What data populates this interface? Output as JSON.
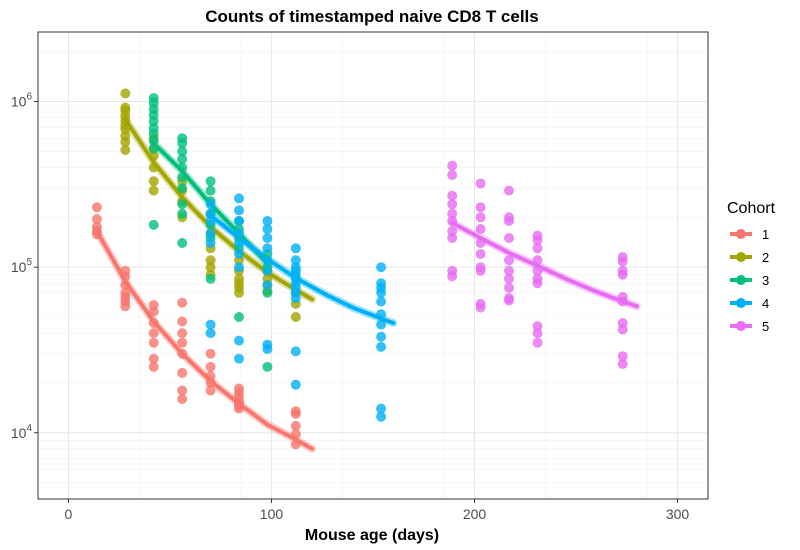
{
  "chart_data": {
    "type": "scatter",
    "title": "Counts of timestamped naive CD8 T cells",
    "xlabel": "Mouse age (days)",
    "ylabel": "",
    "xlim": [
      -15,
      315
    ],
    "ylim": [
      3.6,
      6.42
    ],
    "y_scale": "log10",
    "x_ticks": [
      0,
      100,
      200,
      300
    ],
    "y_ticks": [
      {
        "value": 10000,
        "base": "10",
        "exp": "4"
      },
      {
        "value": 100000,
        "base": "10",
        "exp": "5"
      },
      {
        "value": 1000000,
        "base": "10",
        "exp": "6"
      }
    ],
    "grid": true,
    "legend": {
      "title": "Cohort",
      "position": "right"
    },
    "series": [
      {
        "name": "1",
        "color": "#F8766D",
        "points": [
          [
            14,
            230000
          ],
          [
            14,
            195000
          ],
          [
            14,
            175000
          ],
          [
            14,
            165000
          ],
          [
            14,
            158000
          ],
          [
            28,
            95000
          ],
          [
            28,
            88000
          ],
          [
            28,
            78000
          ],
          [
            28,
            70000
          ],
          [
            28,
            66000
          ],
          [
            28,
            62000
          ],
          [
            28,
            58000
          ],
          [
            42,
            59000
          ],
          [
            42,
            54000
          ],
          [
            42,
            46000
          ],
          [
            42,
            40000
          ],
          [
            42,
            35000
          ],
          [
            42,
            28000
          ],
          [
            42,
            25000
          ],
          [
            56,
            61000
          ],
          [
            56,
            47000
          ],
          [
            56,
            40000
          ],
          [
            56,
            35000
          ],
          [
            56,
            30000
          ],
          [
            56,
            23000
          ],
          [
            56,
            18000
          ],
          [
            56,
            16000
          ],
          [
            70,
            30000
          ],
          [
            70,
            25000
          ],
          [
            70,
            22000
          ],
          [
            70,
            20000
          ],
          [
            70,
            18000
          ],
          [
            84,
            18500
          ],
          [
            84,
            17500
          ],
          [
            84,
            16500
          ],
          [
            84,
            15500
          ],
          [
            84,
            15000
          ],
          [
            84,
            14500
          ],
          [
            84,
            14000
          ],
          [
            112,
            13500
          ],
          [
            112,
            13000
          ],
          [
            112,
            11000
          ],
          [
            112,
            9800
          ],
          [
            112,
            8500
          ]
        ],
        "fit": [
          [
            14,
            165000
          ],
          [
            28,
            82000
          ],
          [
            42,
            47000
          ],
          [
            56,
            30000
          ],
          [
            70,
            20500
          ],
          [
            84,
            15000
          ],
          [
            98,
            11200
          ],
          [
            112,
            9100
          ],
          [
            120,
            8000
          ]
        ]
      },
      {
        "name": "2",
        "color": "#A3A500",
        "points": [
          [
            28,
            1120000
          ],
          [
            28,
            920000
          ],
          [
            28,
            880000
          ],
          [
            28,
            820000
          ],
          [
            28,
            770000
          ],
          [
            28,
            720000
          ],
          [
            28,
            680000
          ],
          [
            28,
            620000
          ],
          [
            28,
            570000
          ],
          [
            28,
            510000
          ],
          [
            42,
            600000
          ],
          [
            42,
            520000
          ],
          [
            42,
            470000
          ],
          [
            42,
            400000
          ],
          [
            42,
            330000
          ],
          [
            42,
            290000
          ],
          [
            56,
            330000
          ],
          [
            56,
            290000
          ],
          [
            56,
            250000
          ],
          [
            56,
            200000
          ],
          [
            70,
            160000
          ],
          [
            70,
            130000
          ],
          [
            70,
            110000
          ],
          [
            70,
            100000
          ],
          [
            70,
            90000
          ],
          [
            84,
            110000
          ],
          [
            84,
            95000
          ],
          [
            84,
            85000
          ],
          [
            84,
            80000
          ],
          [
            84,
            75000
          ],
          [
            84,
            70000
          ],
          [
            98,
            95000
          ],
          [
            98,
            85000
          ],
          [
            98,
            78000
          ],
          [
            98,
            72000
          ],
          [
            112,
            70000
          ],
          [
            112,
            60000
          ],
          [
            112,
            50000
          ]
        ],
        "fit": [
          [
            28,
            780000
          ],
          [
            42,
            430000
          ],
          [
            56,
            265000
          ],
          [
            70,
            175000
          ],
          [
            84,
            125000
          ],
          [
            98,
            93000
          ],
          [
            112,
            73000
          ],
          [
            120,
            64000
          ]
        ]
      },
      {
        "name": "3",
        "color": "#00BF7D",
        "points": [
          [
            42,
            1050000
          ],
          [
            42,
            980000
          ],
          [
            42,
            900000
          ],
          [
            42,
            830000
          ],
          [
            42,
            760000
          ],
          [
            42,
            690000
          ],
          [
            42,
            640000
          ],
          [
            42,
            580000
          ],
          [
            42,
            520000
          ],
          [
            42,
            180000
          ],
          [
            56,
            600000
          ],
          [
            56,
            560000
          ],
          [
            56,
            500000
          ],
          [
            56,
            450000
          ],
          [
            56,
            400000
          ],
          [
            56,
            350000
          ],
          [
            56,
            300000
          ],
          [
            56,
            240000
          ],
          [
            56,
            210000
          ],
          [
            56,
            140000
          ],
          [
            70,
            330000
          ],
          [
            70,
            290000
          ],
          [
            70,
            250000
          ],
          [
            70,
            210000
          ],
          [
            70,
            180000
          ],
          [
            70,
            150000
          ],
          [
            70,
            85000
          ],
          [
            84,
            190000
          ],
          [
            84,
            170000
          ],
          [
            84,
            150000
          ],
          [
            84,
            130000
          ],
          [
            84,
            50000
          ],
          [
            98,
            120000
          ],
          [
            98,
            100000
          ],
          [
            98,
            70000
          ],
          [
            98,
            25000
          ]
        ],
        "fit": [
          [
            42,
            560000
          ],
          [
            56,
            380000
          ],
          [
            70,
            240000
          ],
          [
            84,
            160000
          ],
          [
            98,
            105000
          ]
        ]
      },
      {
        "name": "4",
        "color": "#00B0F6",
        "points": [
          [
            70,
            240000
          ],
          [
            70,
            210000
          ],
          [
            70,
            190000
          ],
          [
            70,
            160000
          ],
          [
            70,
            140000
          ],
          [
            70,
            45000
          ],
          [
            70,
            40000
          ],
          [
            84,
            260000
          ],
          [
            84,
            220000
          ],
          [
            84,
            190000
          ],
          [
            84,
            160000
          ],
          [
            84,
            140000
          ],
          [
            84,
            120000
          ],
          [
            84,
            100000
          ],
          [
            84,
            36000
          ],
          [
            84,
            28000
          ],
          [
            98,
            190000
          ],
          [
            98,
            170000
          ],
          [
            98,
            150000
          ],
          [
            98,
            130000
          ],
          [
            98,
            110000
          ],
          [
            98,
            95000
          ],
          [
            98,
            78000
          ],
          [
            98,
            34000
          ],
          [
            98,
            32000
          ],
          [
            112,
            130000
          ],
          [
            112,
            110000
          ],
          [
            112,
            100000
          ],
          [
            112,
            95000
          ],
          [
            112,
            90000
          ],
          [
            112,
            85000
          ],
          [
            112,
            80000
          ],
          [
            112,
            75000
          ],
          [
            112,
            70000
          ],
          [
            112,
            65000
          ],
          [
            112,
            31000
          ],
          [
            112,
            19500
          ],
          [
            154,
            100000
          ],
          [
            154,
            80000
          ],
          [
            154,
            75000
          ],
          [
            154,
            70000
          ],
          [
            154,
            62000
          ],
          [
            154,
            52000
          ],
          [
            154,
            45000
          ],
          [
            154,
            38000
          ],
          [
            154,
            33000
          ],
          [
            154,
            14000
          ],
          [
            154,
            12500
          ]
        ],
        "fit": [
          [
            70,
            205000
          ],
          [
            84,
            150000
          ],
          [
            98,
            112000
          ],
          [
            112,
            86000
          ],
          [
            126,
            69000
          ],
          [
            140,
            57000
          ],
          [
            154,
            49000
          ],
          [
            160,
            46000
          ]
        ]
      },
      {
        "name": "5",
        "color": "#E76BF3",
        "points": [
          [
            189,
            410000
          ],
          [
            189,
            360000
          ],
          [
            189,
            270000
          ],
          [
            189,
            240000
          ],
          [
            189,
            210000
          ],
          [
            189,
            190000
          ],
          [
            189,
            165000
          ],
          [
            189,
            150000
          ],
          [
            189,
            95000
          ],
          [
            189,
            88000
          ],
          [
            203,
            320000
          ],
          [
            203,
            230000
          ],
          [
            203,
            200000
          ],
          [
            203,
            170000
          ],
          [
            203,
            140000
          ],
          [
            203,
            120000
          ],
          [
            203,
            100000
          ],
          [
            203,
            95000
          ],
          [
            203,
            60000
          ],
          [
            203,
            57000
          ],
          [
            217,
            290000
          ],
          [
            217,
            200000
          ],
          [
            217,
            190000
          ],
          [
            217,
            150000
          ],
          [
            217,
            110000
          ],
          [
            217,
            95000
          ],
          [
            217,
            85000
          ],
          [
            217,
            75000
          ],
          [
            217,
            65000
          ],
          [
            217,
            63000
          ],
          [
            231,
            155000
          ],
          [
            231,
            145000
          ],
          [
            231,
            130000
          ],
          [
            231,
            110000
          ],
          [
            231,
            95000
          ],
          [
            231,
            85000
          ],
          [
            231,
            80000
          ],
          [
            231,
            44000
          ],
          [
            231,
            40000
          ],
          [
            231,
            35000
          ],
          [
            273,
            115000
          ],
          [
            273,
            108000
          ],
          [
            273,
            95000
          ],
          [
            273,
            90000
          ],
          [
            273,
            66000
          ],
          [
            273,
            62000
          ],
          [
            273,
            46000
          ],
          [
            273,
            42000
          ],
          [
            273,
            29000
          ],
          [
            273,
            26000
          ]
        ],
        "fit": [
          [
            189,
            185000
          ],
          [
            203,
            150000
          ],
          [
            217,
            122000
          ],
          [
            231,
            102000
          ],
          [
            245,
            85000
          ],
          [
            259,
            72000
          ],
          [
            273,
            62000
          ],
          [
            280,
            58000
          ]
        ]
      }
    ]
  }
}
